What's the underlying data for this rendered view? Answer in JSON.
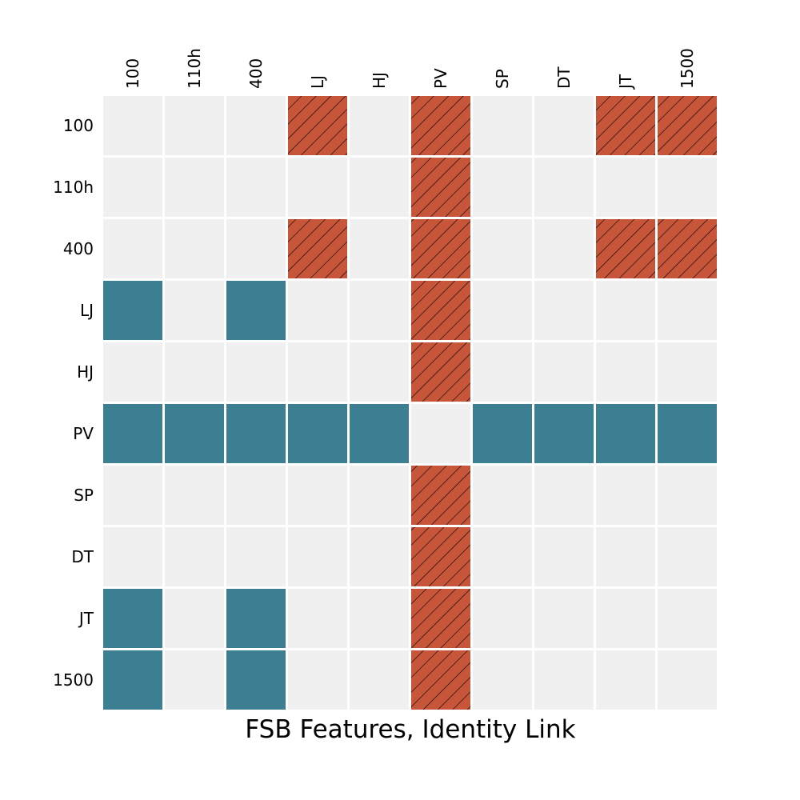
{
  "chart_data": {
    "type": "heatmap",
    "title": "FSB Features, Identity Link",
    "row_labels": [
      "100",
      "110h",
      "400",
      "LJ",
      "HJ",
      "PV",
      "SP",
      "DT",
      "JT",
      "1500"
    ],
    "col_labels": [
      "100",
      "110h",
      "400",
      "LJ",
      "HJ",
      "PV",
      "SP",
      "DT",
      "JT",
      "1500"
    ],
    "cell_states": [
      "none",
      "positive",
      "negative"
    ],
    "matrix": [
      [
        0,
        0,
        0,
        2,
        0,
        2,
        0,
        0,
        2,
        2
      ],
      [
        0,
        0,
        0,
        0,
        0,
        2,
        0,
        0,
        0,
        0
      ],
      [
        0,
        0,
        0,
        2,
        0,
        2,
        0,
        0,
        2,
        2
      ],
      [
        1,
        0,
        1,
        0,
        0,
        2,
        0,
        0,
        0,
        0
      ],
      [
        0,
        0,
        0,
        0,
        0,
        2,
        0,
        0,
        0,
        0
      ],
      [
        1,
        1,
        1,
        1,
        1,
        0,
        1,
        1,
        1,
        1
      ],
      [
        0,
        0,
        0,
        0,
        0,
        2,
        0,
        0,
        0,
        0
      ],
      [
        0,
        0,
        0,
        0,
        0,
        2,
        0,
        0,
        0,
        0
      ],
      [
        1,
        0,
        1,
        0,
        0,
        2,
        0,
        0,
        0,
        0
      ],
      [
        1,
        0,
        1,
        0,
        0,
        2,
        0,
        0,
        0,
        0
      ]
    ],
    "colors": {
      "none": "#f0f0f0",
      "positive": "#3d7f92",
      "negative": "#c6553a",
      "hatch": "#000000",
      "grid": "#ffffff"
    },
    "negative_hatched": true,
    "legend": "none",
    "grid": true
  }
}
